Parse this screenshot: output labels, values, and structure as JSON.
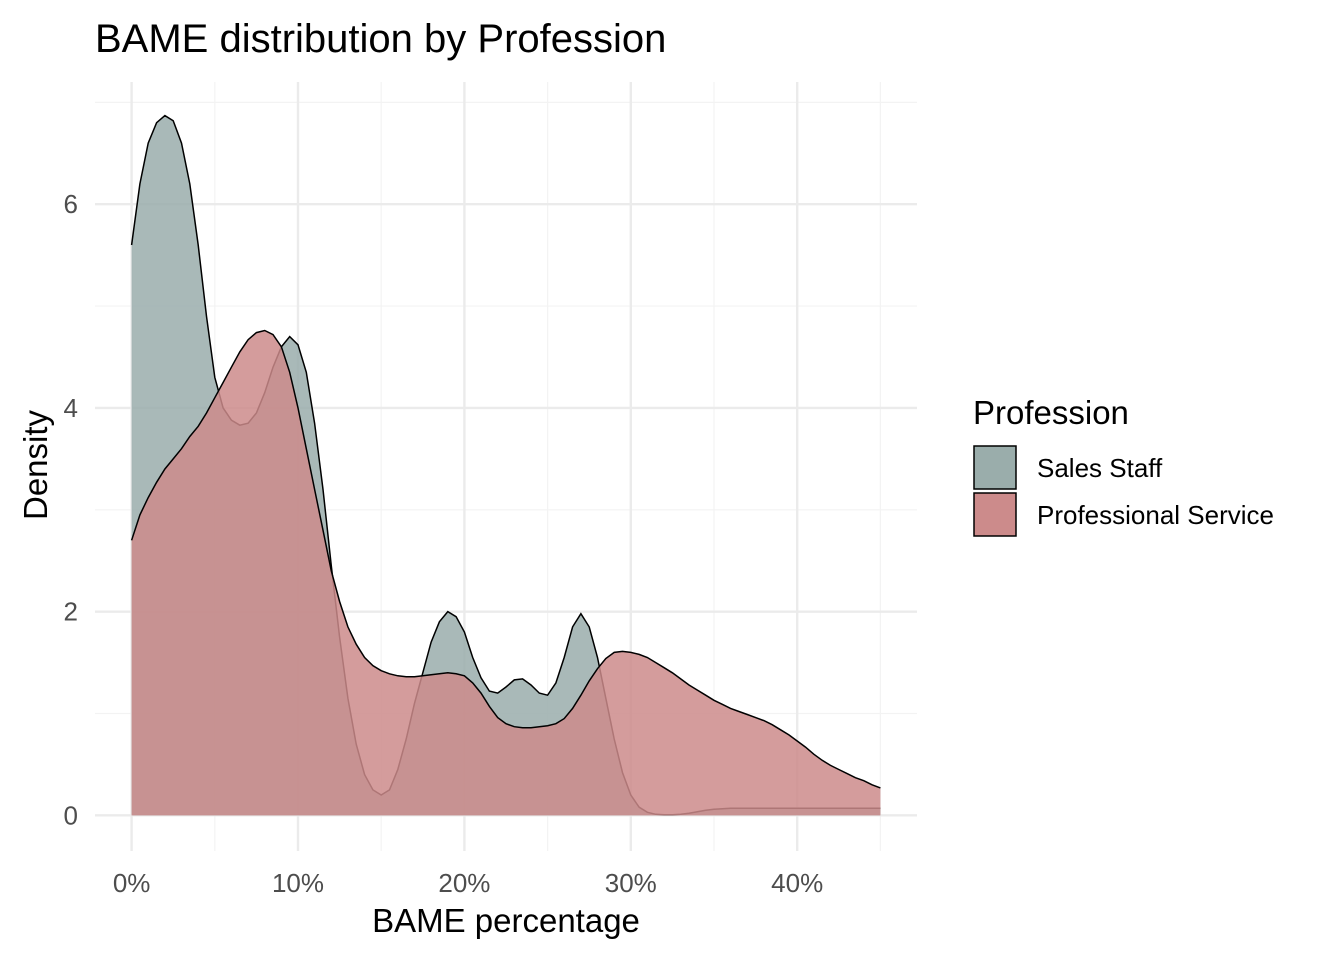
{
  "chart_data": {
    "type": "area",
    "title": "BAME distribution by Profession",
    "xlabel": "BAME percentage",
    "ylabel": "Density",
    "xlim": [
      -0.022,
      0.472
    ],
    "ylim": [
      -0.35,
      7.2
    ],
    "x_ticks": [
      0,
      0.1,
      0.2,
      0.3,
      0.4
    ],
    "x_tick_labels": [
      "0%",
      "10%",
      "20%",
      "30%",
      "40%"
    ],
    "y_ticks": [
      0,
      2,
      4,
      6
    ],
    "y_tick_labels": [
      "0",
      "2",
      "4",
      "6"
    ],
    "grid": true,
    "legend_position": "right",
    "legend_title": "Profession",
    "series": [
      {
        "name": "Sales Staff",
        "color": "#9aadab",
        "x": [
          0,
          0.005,
          0.01,
          0.015,
          0.02,
          0.025,
          0.03,
          0.035,
          0.04,
          0.045,
          0.05,
          0.055,
          0.06,
          0.065,
          0.07,
          0.075,
          0.08,
          0.085,
          0.09,
          0.095,
          0.1,
          0.105,
          0.11,
          0.115,
          0.12,
          0.125,
          0.13,
          0.135,
          0.14,
          0.145,
          0.15,
          0.155,
          0.16,
          0.165,
          0.17,
          0.175,
          0.18,
          0.185,
          0.19,
          0.195,
          0.2,
          0.205,
          0.21,
          0.215,
          0.22,
          0.225,
          0.23,
          0.235,
          0.24,
          0.245,
          0.25,
          0.255,
          0.26,
          0.265,
          0.27,
          0.275,
          0.28,
          0.285,
          0.29,
          0.295,
          0.3,
          0.305,
          0.31,
          0.315,
          0.32,
          0.325,
          0.33,
          0.335,
          0.34,
          0.345,
          0.35,
          0.355,
          0.36,
          0.365,
          0.37,
          0.375,
          0.38,
          0.385,
          0.39,
          0.395,
          0.4,
          0.405,
          0.41,
          0.415,
          0.42,
          0.425,
          0.43,
          0.435,
          0.44,
          0.445,
          0.45
        ],
        "y": [
          5.6,
          6.2,
          6.6,
          6.8,
          6.87,
          6.82,
          6.6,
          6.2,
          5.6,
          4.9,
          4.3,
          4.0,
          3.88,
          3.83,
          3.85,
          3.95,
          4.15,
          4.4,
          4.6,
          4.7,
          4.62,
          4.35,
          3.85,
          3.2,
          2.45,
          1.75,
          1.15,
          0.7,
          0.4,
          0.25,
          0.2,
          0.25,
          0.45,
          0.75,
          1.1,
          1.4,
          1.7,
          1.9,
          2.0,
          1.95,
          1.8,
          1.55,
          1.35,
          1.22,
          1.2,
          1.26,
          1.33,
          1.34,
          1.28,
          1.2,
          1.18,
          1.3,
          1.55,
          1.85,
          1.98,
          1.85,
          1.55,
          1.15,
          0.75,
          0.42,
          0.2,
          0.08,
          0.03,
          0.01,
          0.005,
          0.005,
          0.01,
          0.02,
          0.035,
          0.05,
          0.06,
          0.065,
          0.07,
          0.07,
          0.07,
          0.07,
          0.07,
          0.07,
          0.07,
          0.07,
          0.07,
          0.07,
          0.07,
          0.07,
          0.07,
          0.07,
          0.07,
          0.07,
          0.07,
          0.07,
          0.07
        ]
      },
      {
        "name": "Professional Service",
        "color": "#cc8b8b",
        "x": [
          0,
          0.005,
          0.01,
          0.015,
          0.02,
          0.025,
          0.03,
          0.035,
          0.04,
          0.045,
          0.05,
          0.055,
          0.06,
          0.065,
          0.07,
          0.075,
          0.08,
          0.085,
          0.09,
          0.095,
          0.1,
          0.105,
          0.11,
          0.115,
          0.12,
          0.125,
          0.13,
          0.135,
          0.14,
          0.145,
          0.15,
          0.155,
          0.16,
          0.165,
          0.17,
          0.175,
          0.18,
          0.185,
          0.19,
          0.195,
          0.2,
          0.205,
          0.21,
          0.215,
          0.22,
          0.225,
          0.23,
          0.235,
          0.24,
          0.245,
          0.25,
          0.255,
          0.26,
          0.265,
          0.27,
          0.275,
          0.28,
          0.285,
          0.29,
          0.295,
          0.3,
          0.305,
          0.31,
          0.315,
          0.32,
          0.325,
          0.33,
          0.335,
          0.34,
          0.345,
          0.35,
          0.355,
          0.36,
          0.365,
          0.37,
          0.375,
          0.38,
          0.385,
          0.39,
          0.395,
          0.4,
          0.405,
          0.41,
          0.415,
          0.42,
          0.425,
          0.43,
          0.435,
          0.44,
          0.445,
          0.45
        ],
        "y": [
          2.7,
          2.95,
          3.12,
          3.27,
          3.4,
          3.5,
          3.6,
          3.72,
          3.82,
          3.95,
          4.1,
          4.25,
          4.4,
          4.55,
          4.67,
          4.74,
          4.76,
          4.72,
          4.6,
          4.35,
          4.0,
          3.6,
          3.2,
          2.8,
          2.4,
          2.1,
          1.85,
          1.68,
          1.55,
          1.47,
          1.42,
          1.39,
          1.37,
          1.36,
          1.36,
          1.37,
          1.38,
          1.39,
          1.4,
          1.39,
          1.37,
          1.3,
          1.2,
          1.07,
          0.96,
          0.9,
          0.87,
          0.86,
          0.86,
          0.87,
          0.88,
          0.9,
          0.95,
          1.05,
          1.18,
          1.32,
          1.44,
          1.54,
          1.6,
          1.61,
          1.6,
          1.58,
          1.55,
          1.5,
          1.45,
          1.4,
          1.34,
          1.28,
          1.23,
          1.18,
          1.13,
          1.09,
          1.05,
          1.02,
          0.99,
          0.96,
          0.93,
          0.89,
          0.84,
          0.79,
          0.73,
          0.67,
          0.6,
          0.54,
          0.49,
          0.45,
          0.41,
          0.37,
          0.34,
          0.3,
          0.27
        ]
      }
    ]
  }
}
